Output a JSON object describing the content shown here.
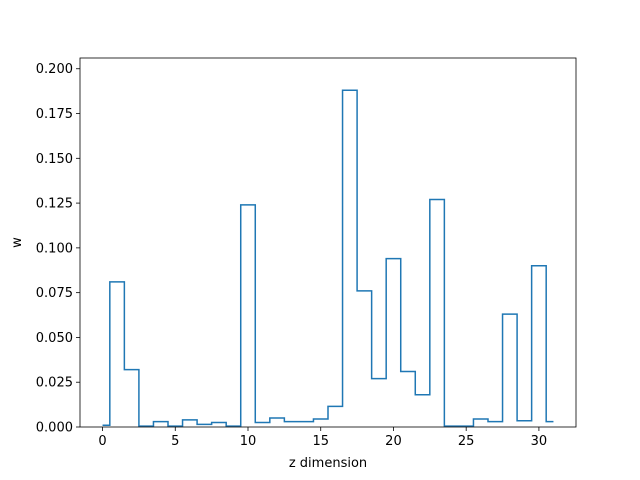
{
  "chart_data": {
    "type": "line",
    "drawstyle": "steps-mid",
    "xlabel": "z dimension",
    "ylabel": "w",
    "xlim": [
      -1.55,
      32.55
    ],
    "ylim": [
      0,
      0.206
    ],
    "xticks": [
      0,
      5,
      10,
      15,
      20,
      25,
      30
    ],
    "yticks": [
      0.0,
      0.025,
      0.05,
      0.075,
      0.1,
      0.125,
      0.15,
      0.175,
      0.2
    ],
    "ytick_labels": [
      "0.000",
      "0.025",
      "0.050",
      "0.075",
      "0.100",
      "0.125",
      "0.150",
      "0.175",
      "0.200"
    ],
    "grid": false,
    "series": [
      {
        "color": "#1f77b4",
        "x": [
          0,
          1,
          2,
          3,
          4,
          5,
          6,
          7,
          8,
          9,
          10,
          11,
          12,
          13,
          14,
          15,
          16,
          17,
          18,
          19,
          20,
          21,
          22,
          23,
          24,
          25,
          26,
          27,
          28,
          29,
          30,
          31
        ],
        "values": [
          0.001,
          0.081,
          0.032,
          0.0005,
          0.003,
          0.0005,
          0.004,
          0.0015,
          0.0025,
          0.0005,
          0.124,
          0.0025,
          0.005,
          0.003,
          0.003,
          0.0045,
          0.0115,
          0.188,
          0.076,
          0.027,
          0.094,
          0.031,
          0.018,
          0.127,
          0.0005,
          0.0005,
          0.0045,
          0.003,
          0.063,
          0.0035,
          0.09,
          0.003
        ]
      }
    ]
  }
}
